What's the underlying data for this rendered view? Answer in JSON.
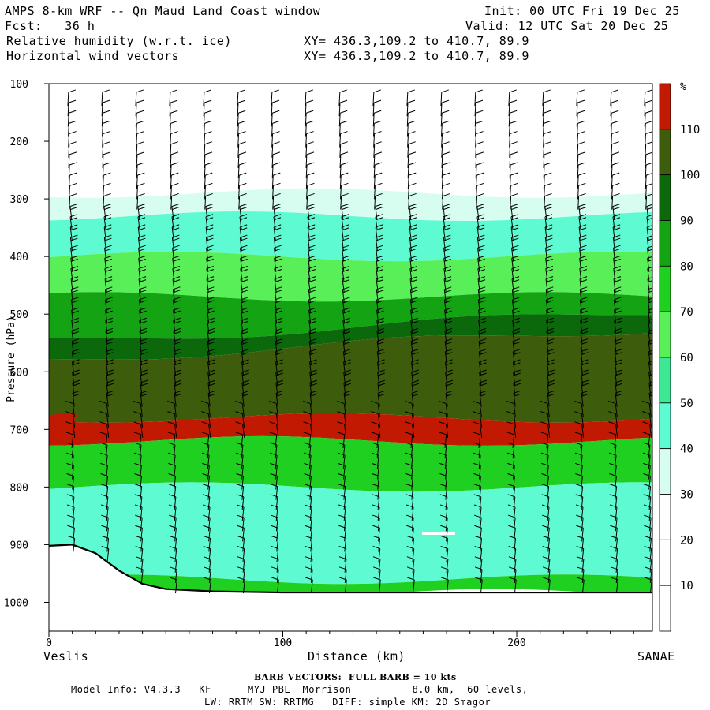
{
  "header": {
    "title": "AMPS 8-km WRF -- Qn Maud Land Coast window",
    "forecast": "Fcst:   36 h",
    "init": "Init: 00 UTC Fri 19 Dec 25",
    "valid": "Valid: 12 UTC Sat 20 Dec 25",
    "field1": "Relative humidity (w.r.t. ice)",
    "field2": "Horizontal wind vectors",
    "xy1": "XY= 436.3,109.2 to 410.7, 89.9",
    "xy2": "XY= 436.3,109.2 to 410.7, 89.9"
  },
  "footer": {
    "barb_note": "BARB VECTORS:  FULL BARB = 10 kts",
    "model_info_1": "Model Info: V4.3.3   KF      MYJ PBL  Morrison          8.0 km,  60 levels,",
    "model_info_2": "LW: RRTM SW: RRTMG   DIFF: simple KM: 2D Smagor"
  },
  "chart_data": {
    "type": "cross-section contour with wind barbs",
    "title": "Relative humidity (w.r.t. ice) and horizontal wind vectors",
    "xlabel": "Distance (km)",
    "ylabel": "Pressure (hPa)",
    "xlim": [
      0,
      258
    ],
    "ylim": [
      1050,
      100
    ],
    "x_ticks": [
      0,
      100,
      200
    ],
    "x_tick_labels": [
      "0",
      "100",
      "200"
    ],
    "y_ticks": [
      100,
      200,
      300,
      400,
      500,
      600,
      700,
      800,
      900,
      1000
    ],
    "y_tick_labels": [
      "100",
      "200",
      "300",
      "400",
      "500",
      "600",
      "700",
      "800",
      "900",
      "1000"
    ],
    "left_endpoint": "Veslis",
    "right_endpoint": "SANAE",
    "colorbar": {
      "unit": "%",
      "labels": [
        "10",
        "20",
        "30",
        "40",
        "50",
        "60",
        "70",
        "80",
        "90",
        "100",
        "110"
      ],
      "levels": [
        10,
        20,
        30,
        40,
        50,
        60,
        70,
        80,
        90,
        100,
        110
      ],
      "colors": [
        "#ffffff",
        "#ffffff",
        "#ffffff",
        "#d6fdf0",
        "#5efbd3",
        "#3de895",
        "#58ef58",
        "#20d020",
        "#13a313",
        "#0b690b",
        "#3d5c0c",
        "#c21a02"
      ]
    },
    "rh_bands_hPa": [
      {
        "class": "<30",
        "top": 100,
        "bottom": 290
      },
      {
        "class": "30-40",
        "top": 290,
        "bottom": 330
      },
      {
        "class": "40-50",
        "top": 330,
        "bottom": 400
      },
      {
        "class": "60-70",
        "top": 400,
        "bottom": 470
      },
      {
        "class": "80-90",
        "top": 470,
        "bottom": 550
      },
      {
        "class": "90-100",
        "top": 550,
        "bottom": 580
      },
      {
        "class": "100-110",
        "top": 580,
        "bottom": 680
      },
      {
        "class": "110+",
        "top": 680,
        "bottom": 720
      },
      {
        "class": "70-80",
        "top": 720,
        "bottom": 800
      },
      {
        "class": "40-50",
        "top": 800,
        "bottom": 960
      },
      {
        "class": "70-80",
        "top": 960,
        "bottom": 985
      }
    ],
    "terrain_hPa": [
      [
        0,
        902
      ],
      [
        10,
        900
      ],
      [
        20,
        915
      ],
      [
        30,
        945
      ],
      [
        40,
        968
      ],
      [
        50,
        977
      ],
      [
        70,
        981
      ],
      [
        100,
        983
      ],
      [
        150,
        983
      ],
      [
        200,
        983
      ],
      [
        258,
        983
      ]
    ]
  }
}
